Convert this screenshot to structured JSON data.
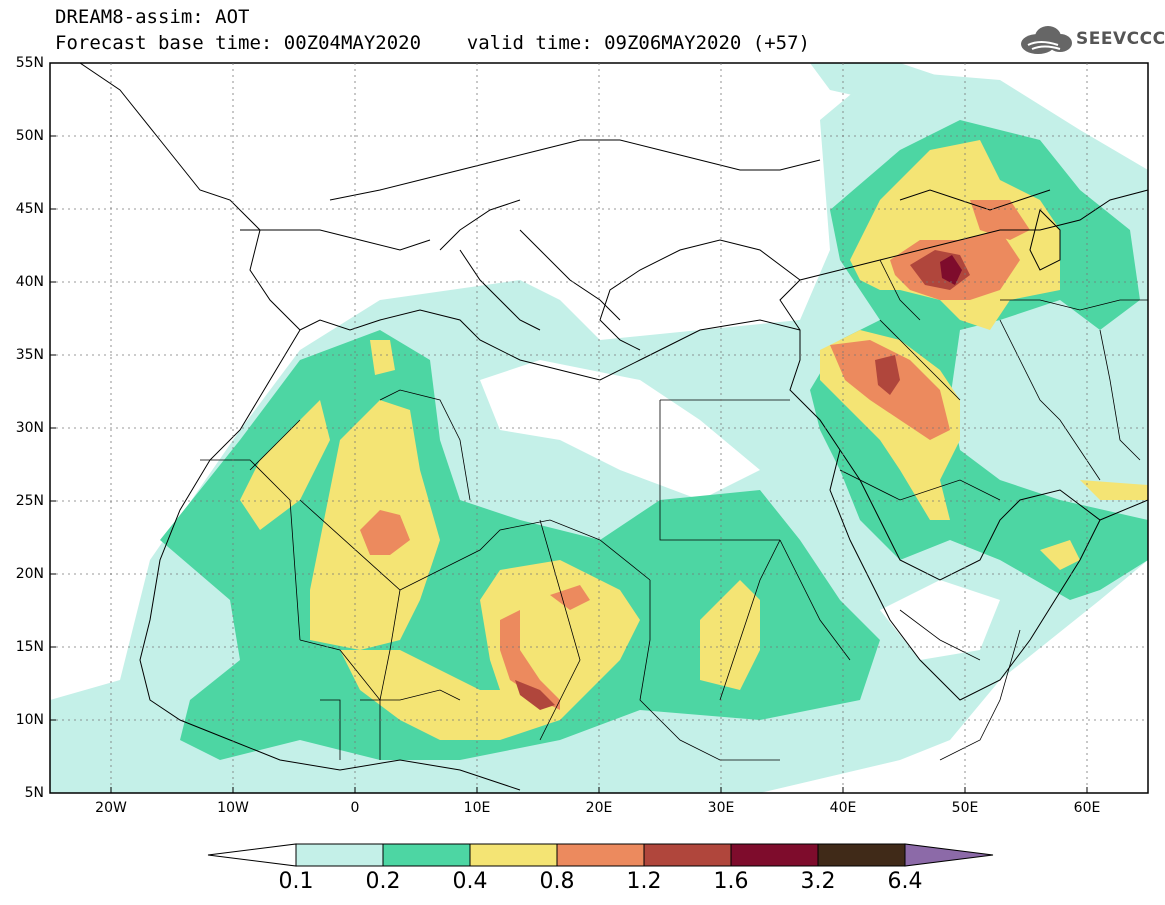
{
  "header": {
    "line1": "DREAM8-assim: AOT",
    "line2": "Forecast base time: 00Z04MAY2020    valid time: 09Z06MAY2020 (+57)"
  },
  "logo": {
    "text": "SEEVCCC",
    "icon": "cloud-icon"
  },
  "map": {
    "lat_labels": [
      "55N",
      "50N",
      "45N",
      "40N",
      "35N",
      "30N",
      "25N",
      "20N",
      "15N",
      "10N",
      "5N"
    ],
    "lon_labels": [
      "20W",
      "10W",
      "0",
      "10E",
      "20E",
      "30E",
      "40E",
      "50E",
      "60E"
    ],
    "lat_range": [
      5,
      55
    ],
    "lon_range": [
      -25,
      65
    ]
  },
  "colorbar": {
    "labels": [
      "0.1",
      "0.2",
      "0.4",
      "0.8",
      "1.2",
      "1.6",
      "3.2",
      "6.4"
    ],
    "colors": [
      "#ffffff",
      "#c4f0e8",
      "#4dd6a3",
      "#f4e474",
      "#ec8a5e",
      "#b0463c",
      "#7e0c2c",
      "#402a18",
      "#8c6aa8"
    ]
  }
}
